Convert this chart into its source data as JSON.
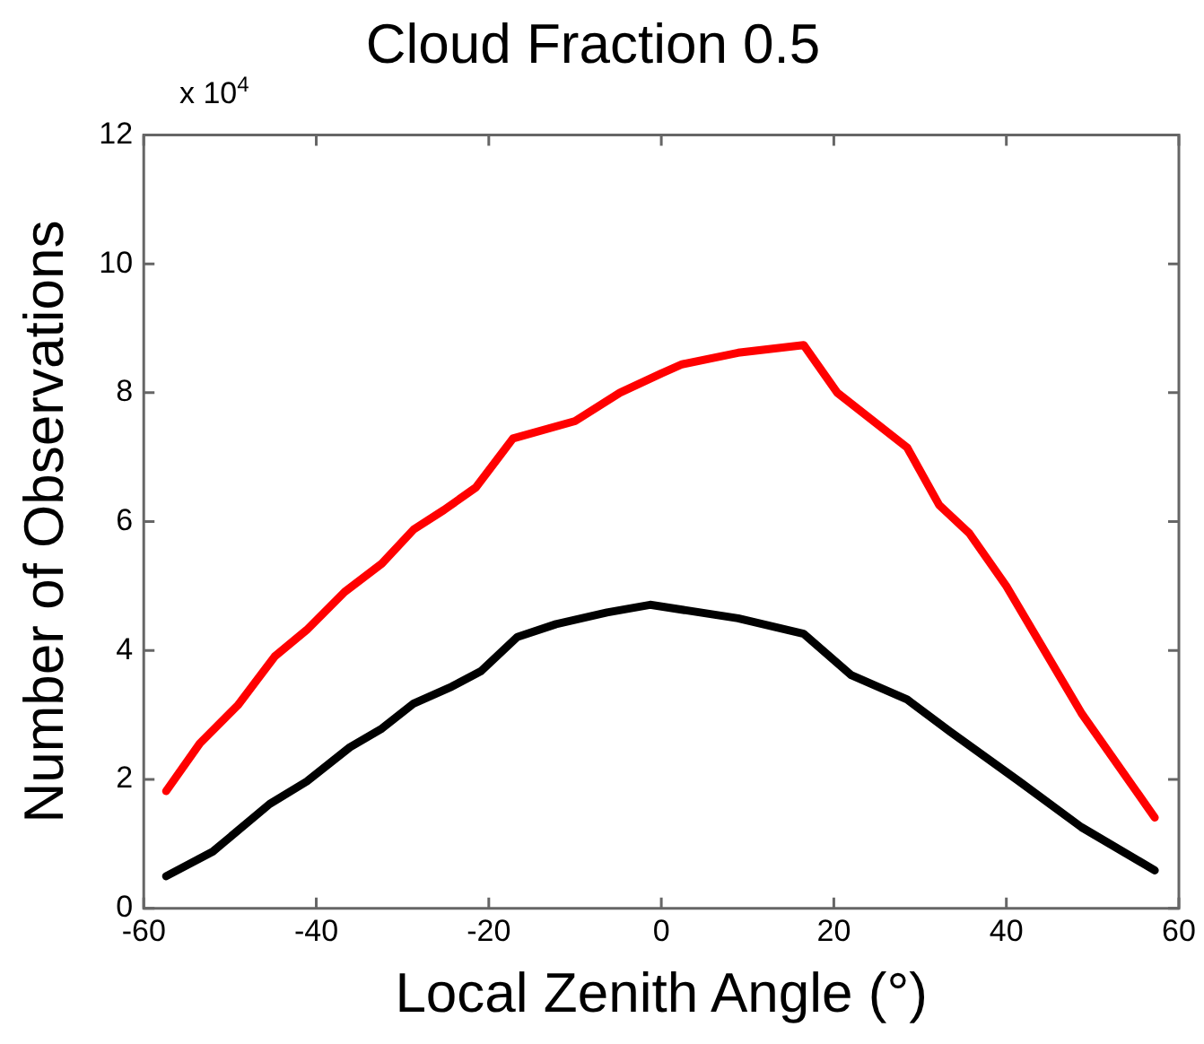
{
  "chart_data": {
    "type": "line",
    "title": "Cloud Fraction 0.5",
    "xlabel": "Local Zenith Angle (°)",
    "ylabel": "Number of Observations",
    "annotations": [
      "x 10$^{4}$"
    ],
    "xlim": [
      -60,
      60
    ],
    "xticks": [
      -60,
      -40,
      -20,
      0,
      20,
      40,
      60
    ],
    "ylim": [
      0,
      12
    ],
    "yticks": [
      0,
      2,
      4,
      6,
      8,
      10,
      12
    ],
    "grid": false,
    "legend": false,
    "marker": "none",
    "line_style": "solid",
    "series": [
      {
        "color": "#ff0000",
        "x": [
          -57.4,
          -53.5,
          -49.1,
          -44.8,
          -41.1,
          -36.7,
          -32.4,
          -28.7,
          -25.2,
          -21.5,
          -17.2,
          -10,
          -4.8,
          0,
          2.4,
          8.9,
          16.5,
          20.4,
          28.5,
          32.2,
          35.7,
          40,
          48.7,
          57.2
        ],
        "values": [
          1.82,
          2.56,
          3.15,
          3.91,
          4.32,
          4.91,
          5.35,
          5.88,
          6.18,
          6.53,
          7.29,
          7.56,
          8.0,
          8.3,
          8.44,
          8.62,
          8.74,
          8.0,
          7.15,
          6.26,
          5.82,
          5.0,
          3.03,
          1.41
        ]
      },
      {
        "color": "#000000",
        "x": [
          -57.4,
          -52,
          -45.4,
          -41.1,
          -36.1,
          -32.4,
          -28.7,
          -24.3,
          -20.9,
          -16.7,
          -12.2,
          -6.3,
          -1.3,
          8.9,
          16.5,
          22,
          28.5,
          33.5,
          41.5,
          48.7,
          57.2
        ],
        "values": [
          0.5,
          0.88,
          1.62,
          1.97,
          2.5,
          2.79,
          3.18,
          3.44,
          3.68,
          4.21,
          4.41,
          4.59,
          4.71,
          4.5,
          4.26,
          3.62,
          3.24,
          2.74,
          1.97,
          1.26,
          0.59
        ]
      }
    ]
  }
}
